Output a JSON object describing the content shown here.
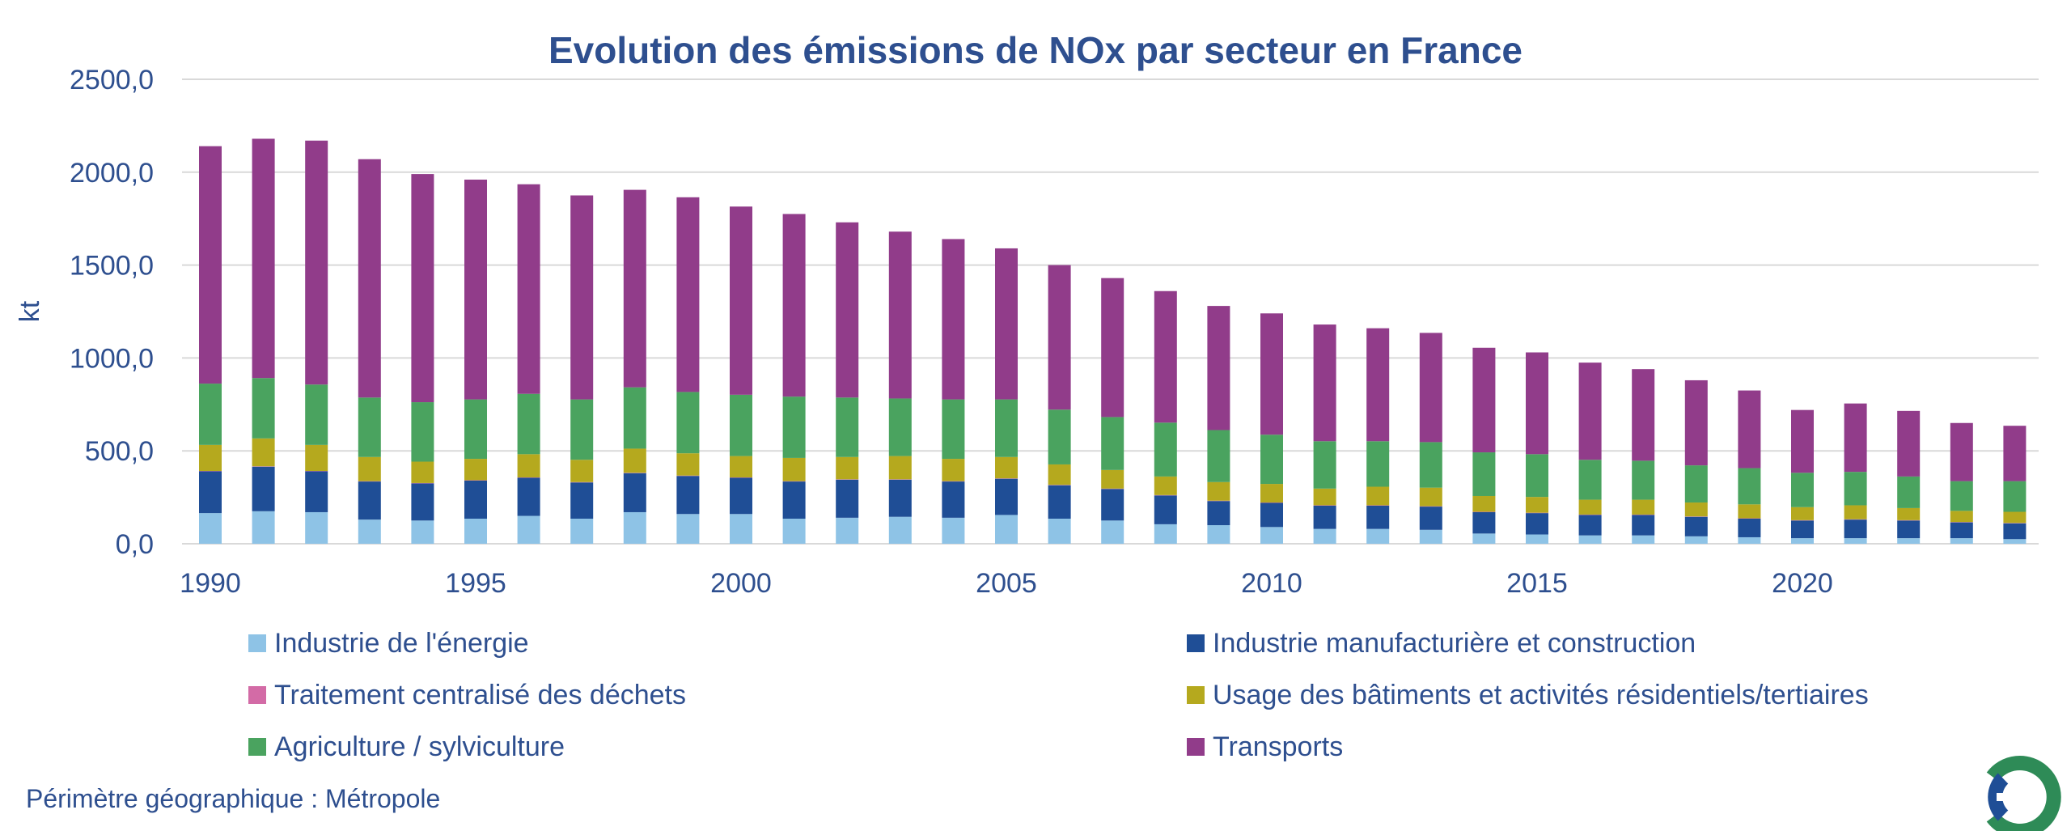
{
  "chart_data": {
    "type": "bar",
    "stacked": true,
    "title": "Evolution des émissions de NOx par secteur en France",
    "ylabel": "kt",
    "xlabel": "",
    "ylim": [
      0,
      2500
    ],
    "yticks": [
      "0,0",
      "500,0",
      "1000,0",
      "1500,0",
      "2000,0",
      "2500,0"
    ],
    "xticks": [
      "1990",
      "1995",
      "2000",
      "2005",
      "2010",
      "2015",
      "2020"
    ],
    "grid": true,
    "legend_position": "bottom",
    "categories": [
      1990,
      1991,
      1992,
      1993,
      1994,
      1995,
      1996,
      1997,
      1998,
      1999,
      2000,
      2001,
      2002,
      2003,
      2004,
      2005,
      2006,
      2007,
      2008,
      2009,
      2010,
      2011,
      2012,
      2013,
      2014,
      2015,
      2016,
      2017,
      2018,
      2019,
      2020,
      2021,
      2022,
      2023,
      2024
    ],
    "series": [
      {
        "name": "Industrie de l'énergie",
        "color": "#8ec3e6",
        "values": [
          165,
          175,
          170,
          130,
          125,
          135,
          150,
          135,
          170,
          160,
          160,
          135,
          140,
          145,
          140,
          155,
          135,
          125,
          105,
          100,
          90,
          80,
          80,
          75,
          55,
          50,
          45,
          45,
          40,
          35,
          30,
          30,
          30,
          30,
          25
        ]
      },
      {
        "name": "Industrie manufacturière et construction",
        "color": "#1f4e96",
        "values": [
          225,
          240,
          220,
          205,
          200,
          205,
          205,
          195,
          210,
          205,
          195,
          200,
          205,
          200,
          195,
          195,
          180,
          170,
          155,
          130,
          130,
          125,
          125,
          125,
          115,
          115,
          110,
          110,
          105,
          100,
          95,
          100,
          95,
          85,
          85
        ]
      },
      {
        "name": "Traitement centralisé des déchets",
        "color": "#d36ba6",
        "values": [
          2,
          2,
          2,
          2,
          2,
          2,
          2,
          2,
          2,
          2,
          2,
          2,
          2,
          2,
          2,
          2,
          2,
          2,
          2,
          2,
          2,
          2,
          2,
          2,
          2,
          2,
          2,
          2,
          2,
          2,
          2,
          2,
          2,
          2,
          2
        ]
      },
      {
        "name": "Usage des bâtiments et activités résidentiels/tertiaires",
        "color": "#b5a91e",
        "values": [
          140,
          150,
          140,
          130,
          115,
          115,
          125,
          120,
          130,
          120,
          115,
          125,
          120,
          125,
          120,
          115,
          110,
          100,
          100,
          100,
          100,
          90,
          100,
          100,
          85,
          85,
          80,
          80,
          75,
          75,
          70,
          75,
          65,
          60,
          60
        ]
      },
      {
        "name": "Agriculture / sylviculture",
        "color": "#4aa35f",
        "values": [
          330,
          325,
          325,
          320,
          320,
          320,
          325,
          325,
          330,
          330,
          330,
          330,
          320,
          310,
          320,
          310,
          295,
          285,
          290,
          280,
          265,
          255,
          245,
          245,
          235,
          230,
          215,
          210,
          200,
          195,
          185,
          180,
          170,
          160,
          165
        ]
      },
      {
        "name": "Transports",
        "color": "#913c8a",
        "values": [
          1278,
          1288,
          1313,
          1283,
          1228,
          1183,
          1128,
          1098,
          1063,
          1048,
          1013,
          983,
          943,
          898,
          863,
          813,
          778,
          748,
          708,
          668,
          653,
          628,
          608,
          588,
          563,
          548,
          523,
          493,
          458,
          418,
          338,
          368,
          353,
          313,
          298
        ]
      }
    ]
  },
  "legend": {
    "items": [
      {
        "label": "Industrie de l'énergie",
        "color": "#8ec3e6"
      },
      {
        "label": "Industrie manufacturière et construction",
        "color": "#1f4e96"
      },
      {
        "label": "Traitement centralisé des déchets",
        "color": "#d36ba6"
      },
      {
        "label": "Usage des bâtiments et activités résidentiels/tertiaires",
        "color": "#b5a91e"
      },
      {
        "label": "Agriculture / sylviculture",
        "color": "#4aa35f"
      },
      {
        "label": "Transports",
        "color": "#913c8a"
      }
    ]
  },
  "footnote": "Périmètre géographique : Métropole",
  "logo": {
    "icon": "citepa-logo-icon",
    "colors": [
      "#1f4e96",
      "#2e8b57"
    ]
  },
  "colors": {
    "text": "#2e4f8f",
    "grid": "#d9d9d9"
  }
}
